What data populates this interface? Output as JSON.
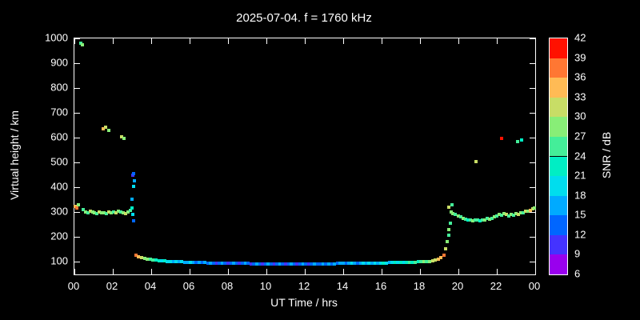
{
  "title": "2025-07-04. f = 1760 kHz",
  "colors": {
    "background": "#000000",
    "foreground": "#ffffff"
  },
  "chart_data": {
    "type": "scatter",
    "title": "2025-07-04. f = 1760 kHz",
    "xlabel": "UT Time / hrs",
    "ylabel": "Virtual height / km",
    "colorbar_label": "SNR / dB",
    "xlim": [
      0,
      24
    ],
    "ylim": [
      50,
      1000
    ],
    "grid": false,
    "x_tick_values": [
      0,
      2,
      4,
      6,
      8,
      10,
      12,
      14,
      16,
      18,
      20,
      22,
      24
    ],
    "x_tick_labels": [
      "00",
      "02",
      "04",
      "06",
      "08",
      "10",
      "12",
      "14",
      "16",
      "18",
      "20",
      "22",
      "00"
    ],
    "y_tick_values": [
      100,
      200,
      300,
      400,
      500,
      600,
      700,
      800,
      900,
      1000
    ],
    "y_tick_labels": [
      "100",
      "200",
      "300",
      "400",
      "500",
      "600",
      "700",
      "800",
      "900",
      "1000"
    ],
    "colorbar": {
      "min": 6,
      "max": 42,
      "tick_values": [
        6,
        9,
        12,
        15,
        18,
        21,
        24,
        27,
        30,
        33,
        36,
        39,
        42
      ],
      "segments": [
        {
          "from": 6,
          "to": 9,
          "color": "#9900ee"
        },
        {
          "from": 9,
          "to": 12,
          "color": "#4433ff"
        },
        {
          "from": 12,
          "to": 15,
          "color": "#0066ff"
        },
        {
          "from": 15,
          "to": 18,
          "color": "#00aaff"
        },
        {
          "from": 18,
          "to": 21,
          "color": "#00ddee"
        },
        {
          "from": 21,
          "to": 24,
          "color": "#00eec4"
        },
        {
          "from": 24,
          "to": 27,
          "color": "#44ee99"
        },
        {
          "from": 27,
          "to": 30,
          "color": "#88ee77"
        },
        {
          "from": 30,
          "to": 33,
          "color": "#c8dd66"
        },
        {
          "from": 33,
          "to": 36,
          "color": "#ffbb55"
        },
        {
          "from": 36,
          "to": 39,
          "color": "#ff7733"
        },
        {
          "from": 39,
          "to": 42,
          "color": "#ff1100"
        }
      ]
    },
    "points": [
      [
        0.05,
        325,
        36
      ],
      [
        0.12,
        318,
        39
      ],
      [
        0.22,
        331,
        30
      ],
      [
        0.35,
        982,
        27
      ],
      [
        0.42,
        973,
        30
      ],
      [
        0.45,
        310,
        27
      ],
      [
        0.6,
        302,
        30
      ],
      [
        0.72,
        297,
        27
      ],
      [
        0.85,
        303,
        33
      ],
      [
        0.95,
        300,
        30
      ],
      [
        1.05,
        298,
        30
      ],
      [
        1.18,
        296,
        27
      ],
      [
        1.3,
        301,
        33
      ],
      [
        1.42,
        298,
        30
      ],
      [
        1.5,
        636,
        36
      ],
      [
        1.63,
        641,
        33
      ],
      [
        1.79,
        631,
        30
      ],
      [
        1.55,
        297,
        30
      ],
      [
        1.68,
        294,
        27
      ],
      [
        1.8,
        300,
        33
      ],
      [
        1.92,
        297,
        30
      ],
      [
        2.05,
        302,
        27
      ],
      [
        2.18,
        299,
        33
      ],
      [
        2.3,
        304,
        30
      ],
      [
        2.42,
        300,
        27
      ],
      [
        2.45,
        603,
        33
      ],
      [
        2.6,
        597,
        30
      ],
      [
        2.55,
        298,
        30
      ],
      [
        2.68,
        295,
        33
      ],
      [
        2.8,
        301,
        30
      ],
      [
        2.92,
        308,
        27
      ],
      [
        3.0,
        318,
        24
      ],
      [
        3.05,
        292,
        21
      ],
      [
        3.02,
        352,
        18
      ],
      [
        3.07,
        403,
        21
      ],
      [
        3.05,
        448,
        12
      ],
      [
        3.1,
        457,
        15
      ],
      [
        3.12,
        428,
        18
      ],
      [
        3.1,
        265,
        15
      ],
      [
        3.2,
        128,
        39
      ],
      [
        3.35,
        122,
        36
      ],
      [
        3.5,
        118,
        33
      ],
      [
        3.65,
        115,
        30
      ],
      [
        3.8,
        112,
        30
      ],
      [
        3.95,
        110,
        27
      ],
      [
        4.1,
        108,
        27
      ],
      [
        4.25,
        107,
        24
      ],
      [
        4.4,
        106,
        24
      ],
      [
        4.55,
        105,
        21
      ],
      [
        4.7,
        104,
        24
      ],
      [
        4.85,
        103,
        21
      ],
      [
        5.0,
        102,
        21
      ],
      [
        5.15,
        101,
        18
      ],
      [
        5.3,
        101,
        21
      ],
      [
        5.45,
        100,
        18
      ],
      [
        5.6,
        100,
        21
      ],
      [
        5.75,
        99,
        18
      ],
      [
        5.9,
        99,
        18
      ],
      [
        6.05,
        98,
        21
      ],
      [
        6.2,
        98,
        18
      ],
      [
        6.35,
        98,
        15
      ],
      [
        6.5,
        97,
        18
      ],
      [
        6.65,
        97,
        15
      ],
      [
        6.8,
        97,
        18
      ],
      [
        6.95,
        96,
        15
      ],
      [
        7.1,
        96,
        18
      ],
      [
        7.25,
        96,
        15
      ],
      [
        7.4,
        96,
        12
      ],
      [
        7.55,
        95,
        15
      ],
      [
        7.7,
        95,
        18
      ],
      [
        7.85,
        95,
        15
      ],
      [
        8.0,
        95,
        12
      ],
      [
        8.15,
        95,
        15
      ],
      [
        8.3,
        94,
        18
      ],
      [
        8.45,
        94,
        15
      ],
      [
        8.6,
        94,
        12
      ],
      [
        8.75,
        94,
        15
      ],
      [
        8.9,
        94,
        18
      ],
      [
        9.05,
        94,
        15
      ],
      [
        9.2,
        93,
        12
      ],
      [
        9.35,
        93,
        15
      ],
      [
        9.5,
        93,
        18
      ],
      [
        9.65,
        93,
        15
      ],
      [
        9.8,
        93,
        12
      ],
      [
        9.95,
        93,
        15
      ],
      [
        10.1,
        93,
        18
      ],
      [
        10.25,
        93,
        15
      ],
      [
        10.4,
        93,
        12
      ],
      [
        10.55,
        93,
        15
      ],
      [
        10.7,
        93,
        18
      ],
      [
        10.85,
        93,
        15
      ],
      [
        11.0,
        93,
        12
      ],
      [
        11.15,
        93,
        15
      ],
      [
        11.3,
        93,
        18
      ],
      [
        11.45,
        93,
        15
      ],
      [
        11.6,
        93,
        12
      ],
      [
        11.75,
        93,
        15
      ],
      [
        11.9,
        93,
        18
      ],
      [
        12.05,
        93,
        15
      ],
      [
        12.2,
        93,
        12
      ],
      [
        12.35,
        93,
        15
      ],
      [
        12.5,
        93,
        18
      ],
      [
        12.65,
        93,
        15
      ],
      [
        12.8,
        93,
        15
      ],
      [
        12.95,
        93,
        18
      ],
      [
        13.1,
        93,
        15
      ],
      [
        13.25,
        93,
        18
      ],
      [
        13.4,
        93,
        15
      ],
      [
        13.55,
        93,
        18
      ],
      [
        13.7,
        94,
        15
      ],
      [
        13.85,
        94,
        18
      ],
      [
        14.0,
        94,
        18
      ],
      [
        14.15,
        94,
        15
      ],
      [
        14.3,
        94,
        18
      ],
      [
        14.45,
        94,
        21
      ],
      [
        14.6,
        94,
        18
      ],
      [
        14.75,
        95,
        15
      ],
      [
        14.9,
        95,
        18
      ],
      [
        15.05,
        95,
        21
      ],
      [
        15.2,
        95,
        18
      ],
      [
        15.35,
        95,
        21
      ],
      [
        15.5,
        95,
        18
      ],
      [
        15.65,
        96,
        21
      ],
      [
        15.8,
        96,
        18
      ],
      [
        15.95,
        96,
        21
      ],
      [
        16.1,
        96,
        24
      ],
      [
        16.25,
        96,
        21
      ],
      [
        16.4,
        97,
        18
      ],
      [
        16.55,
        97,
        21
      ],
      [
        16.7,
        97,
        24
      ],
      [
        16.85,
        97,
        21
      ],
      [
        17.0,
        97,
        24
      ],
      [
        17.15,
        98,
        21
      ],
      [
        17.3,
        98,
        24
      ],
      [
        17.45,
        98,
        27
      ],
      [
        17.6,
        99,
        24
      ],
      [
        17.75,
        99,
        27
      ],
      [
        17.9,
        100,
        24
      ],
      [
        18.05,
        100,
        27
      ],
      [
        18.2,
        101,
        30
      ],
      [
        18.35,
        102,
        27
      ],
      [
        18.5,
        103,
        30
      ],
      [
        18.65,
        105,
        33
      ],
      [
        18.8,
        108,
        33
      ],
      [
        18.95,
        112,
        36
      ],
      [
        19.1,
        118,
        36
      ],
      [
        19.25,
        126,
        39
      ],
      [
        19.35,
        152,
        33
      ],
      [
        19.42,
        183,
        30
      ],
      [
        19.48,
        207,
        27
      ],
      [
        19.52,
        230,
        30
      ],
      [
        19.5,
        322,
        33
      ],
      [
        19.58,
        257,
        27
      ],
      [
        19.62,
        300,
        30
      ],
      [
        19.68,
        331,
        27
      ],
      [
        19.72,
        296,
        30
      ],
      [
        19.85,
        291,
        27
      ],
      [
        20.0,
        286,
        30
      ],
      [
        20.12,
        281,
        27
      ],
      [
        20.25,
        277,
        30
      ],
      [
        20.38,
        273,
        27
      ],
      [
        20.5,
        270,
        24
      ],
      [
        20.62,
        268,
        27
      ],
      [
        20.75,
        267,
        30
      ],
      [
        20.88,
        270,
        27
      ],
      [
        20.9,
        505,
        33
      ],
      [
        21.0,
        268,
        27
      ],
      [
        21.12,
        265,
        24
      ],
      [
        21.25,
        270,
        27
      ],
      [
        21.38,
        268,
        30
      ],
      [
        21.5,
        274,
        27
      ],
      [
        21.62,
        271,
        30
      ],
      [
        21.75,
        277,
        27
      ],
      [
        21.88,
        281,
        30
      ],
      [
        22.0,
        285,
        27
      ],
      [
        22.12,
        291,
        30
      ],
      [
        22.25,
        288,
        27
      ],
      [
        22.25,
        598,
        42
      ],
      [
        22.38,
        294,
        30
      ],
      [
        22.5,
        290,
        33
      ],
      [
        22.62,
        286,
        27
      ],
      [
        22.75,
        291,
        30
      ],
      [
        22.88,
        288,
        27
      ],
      [
        23.0,
        294,
        30
      ],
      [
        23.1,
        586,
        27
      ],
      [
        23.3,
        591,
        24
      ],
      [
        23.12,
        291,
        33
      ],
      [
        23.25,
        299,
        30
      ],
      [
        23.38,
        297,
        27
      ],
      [
        23.5,
        304,
        33
      ],
      [
        23.62,
        303,
        30
      ],
      [
        23.75,
        309,
        36
      ],
      [
        23.88,
        314,
        33
      ],
      [
        23.95,
        318,
        30
      ]
    ]
  }
}
